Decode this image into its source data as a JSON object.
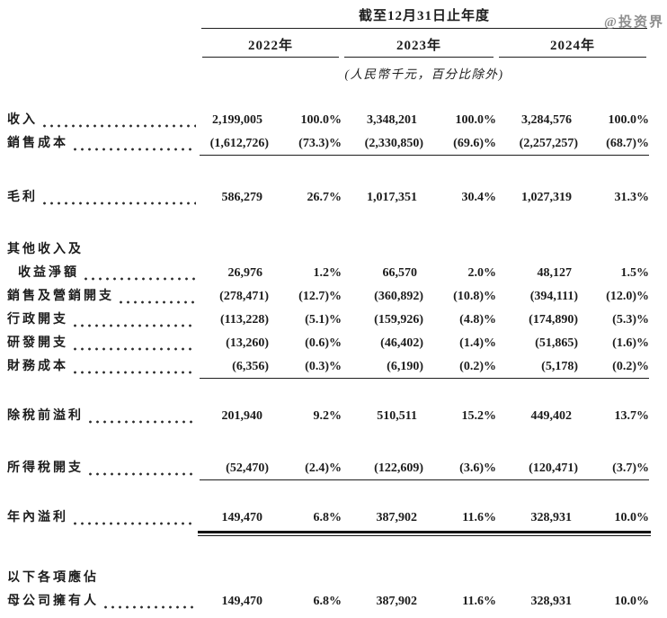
{
  "watermark": "@投资界",
  "colors": {
    "text": "#1c1c1c",
    "rule_lines": "#1e1e1e",
    "watermark": "#8f8f8f",
    "background": "#ffffff"
  },
  "table": {
    "period_header": "截至12月31日止年度",
    "years": [
      "2022年",
      "2023年",
      "2024年"
    ],
    "unit_note": "(人民幣千元，百分比除外)",
    "rows": [
      {
        "label": "收入",
        "leaders": true,
        "indent": false,
        "rule": "none",
        "gap": 0,
        "values": [
          "2,199,005",
          "100.0%",
          "3,348,201",
          "100.0%",
          "3,284,576",
          "100.0%"
        ]
      },
      {
        "label": "銷售成本",
        "leaders": true,
        "indent": false,
        "rule": "single",
        "gap": 0,
        "values": [
          "(1,612,726)",
          "(73.3)%",
          "(2,330,850)",
          "(69.6)%",
          "(2,257,257)",
          "(68.7)%"
        ]
      },
      {
        "label": "毛利",
        "leaders": true,
        "indent": false,
        "rule": "none",
        "gap": 34,
        "values": [
          "586,279",
          "26.7%",
          "1,017,351",
          "30.4%",
          "1,027,319",
          "31.3%"
        ]
      },
      {
        "label": "其他收入及",
        "leaders": false,
        "indent": false,
        "rule": "none",
        "gap": 32,
        "values": []
      },
      {
        "label": "收益淨額",
        "leaders": true,
        "indent": true,
        "rule": "none",
        "gap": 0,
        "values": [
          "26,976",
          "1.2%",
          "66,570",
          "2.0%",
          "48,127",
          "1.5%"
        ]
      },
      {
        "label": "銷售及營銷開支",
        "leaders": true,
        "indent": false,
        "rule": "none",
        "gap": 0,
        "values": [
          "(278,471)",
          "(12.7)%",
          "(360,892)",
          "(10.8)%",
          "(394,111)",
          "(12.0)%"
        ]
      },
      {
        "label": "行政開支",
        "leaders": true,
        "indent": false,
        "rule": "none",
        "gap": 0,
        "values": [
          "(113,228)",
          "(5.1)%",
          "(159,926)",
          "(4.8)%",
          "(174,890)",
          "(5.3)%"
        ]
      },
      {
        "label": "研發開支",
        "leaders": true,
        "indent": false,
        "rule": "none",
        "gap": 0,
        "values": [
          "(13,260)",
          "(0.6)%",
          "(46,402)",
          "(1.4)%",
          "(51,865)",
          "(1.6)%"
        ]
      },
      {
        "label": "財務成本",
        "leaders": true,
        "indent": false,
        "rule": "single",
        "gap": 0,
        "values": [
          "(6,356)",
          "(0.3)%",
          "(6,190)",
          "(0.2)%",
          "(5,178)",
          "(0.2)%"
        ]
      },
      {
        "label": "除稅前溢利",
        "leaders": true,
        "indent": false,
        "rule": "none",
        "gap": 29,
        "values": [
          "201,940",
          "9.2%",
          "510,511",
          "15.2%",
          "449,402",
          "13.7%"
        ]
      },
      {
        "label": "所得稅開支",
        "leaders": true,
        "indent": false,
        "rule": "single",
        "gap": 32,
        "values": [
          "(52,470)",
          "(2.4)%",
          "(122,609)",
          "(3.6)%",
          "(120,471)",
          "(3.7)%"
        ]
      },
      {
        "label": "年內溢利",
        "leaders": true,
        "indent": false,
        "rule": "double",
        "gap": 29,
        "values": [
          "149,470",
          "6.8%",
          "387,902",
          "11.6%",
          "328,931",
          "10.0%"
        ]
      },
      {
        "label": "以下各項應佔",
        "leaders": false,
        "indent": false,
        "rule": "none",
        "gap": 41,
        "values": []
      },
      {
        "label": "母公司擁有人",
        "leaders": true,
        "indent": false,
        "rule": "none",
        "gap": 0,
        "values": [
          "149,470",
          "6.8%",
          "387,902",
          "11.6%",
          "328,931",
          "10.0%"
        ]
      }
    ]
  }
}
